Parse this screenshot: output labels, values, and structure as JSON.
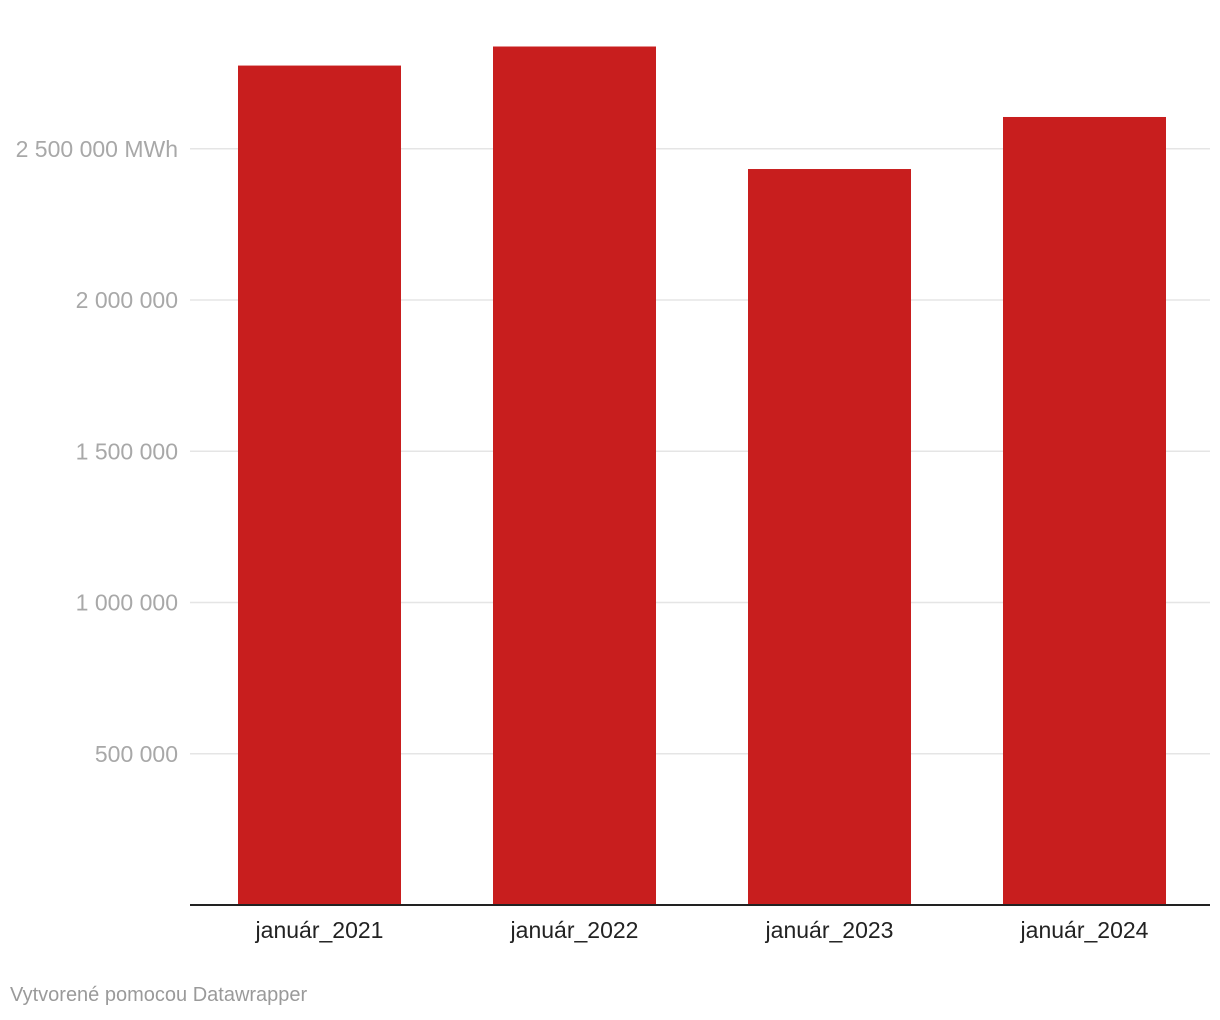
{
  "chart_data": {
    "type": "bar",
    "categories": [
      "január_2021",
      "január_2022",
      "január_2023",
      "január_2024"
    ],
    "values": [
      2775000,
      2838000,
      2433000,
      2605000
    ],
    "y_ticks": [
      {
        "value": 500000,
        "label": "500 000"
      },
      {
        "value": 1000000,
        "label": "1 000 000"
      },
      {
        "value": 1500000,
        "label": "1 500 000"
      },
      {
        "value": 2000000,
        "label": "2 000 000"
      },
      {
        "value": 2500000,
        "label": "2 500 000 MWh"
      }
    ],
    "ylim": [
      0,
      2900000
    ],
    "grid": true,
    "bar_color": "#c81e1e",
    "gridline_color": "#e5e5e5",
    "axis_color": "#222222"
  },
  "footer": {
    "credit": "Vytvorené pomocou Datawrapper"
  }
}
